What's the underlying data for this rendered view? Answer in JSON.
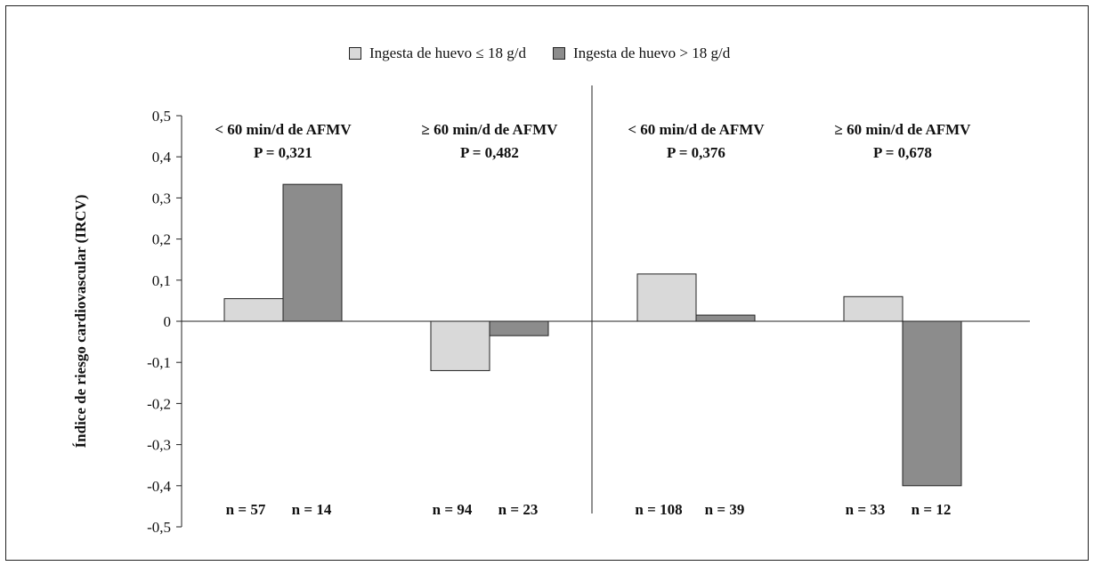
{
  "legend": {
    "items": [
      {
        "label": "Ingesta de huevo ≤ 18 g/d",
        "color": "#d9d9d9"
      },
      {
        "label": "Ingesta de huevo > 18 g/d",
        "color": "#8c8c8c"
      }
    ]
  },
  "chart_data": {
    "type": "bar",
    "ylabel": "Índice de riesgo cardiovascular (IRCV)",
    "ylim": [
      -0.5,
      0.5
    ],
    "yticks": [
      "0,5",
      "0,4",
      "0,3",
      "0,2",
      "0,1",
      "0",
      "-0,1",
      "-0,2",
      "-0,3",
      "-0,4",
      "-0,5"
    ],
    "ytick_values": [
      0.5,
      0.4,
      0.3,
      0.2,
      0.1,
      0,
      -0.1,
      -0.2,
      -0.3,
      -0.4,
      -0.5
    ],
    "grid": false,
    "legend_position": "top-center",
    "series": [
      {
        "name": "Ingesta de huevo ≤ 18 g/d",
        "color": "#d9d9d9"
      },
      {
        "name": "Ingesta de huevo > 18 g/d",
        "color": "#8c8c8c"
      }
    ],
    "groups": [
      {
        "title": "< 60 min/d de AFMV",
        "pvalue": "P = 0,321",
        "values": [
          0.055,
          0.333
        ],
        "n": [
          "n = 57",
          "n = 14"
        ]
      },
      {
        "title": "≥ 60 min/d de AFMV",
        "pvalue": "P = 0,482",
        "values": [
          -0.12,
          -0.035
        ],
        "n": [
          "n = 94",
          "n = 23"
        ]
      },
      {
        "title": "< 60 min/d de AFMV",
        "pvalue": "P = 0,376",
        "values": [
          0.115,
          0.015
        ],
        "n": [
          "n = 108",
          "n = 39"
        ]
      },
      {
        "title": "≥ 60 min/d de AFMV",
        "pvalue": "P = 0,678",
        "values": [
          0.06,
          -0.4
        ],
        "n": [
          "n = 33",
          "n = 12"
        ]
      }
    ]
  }
}
